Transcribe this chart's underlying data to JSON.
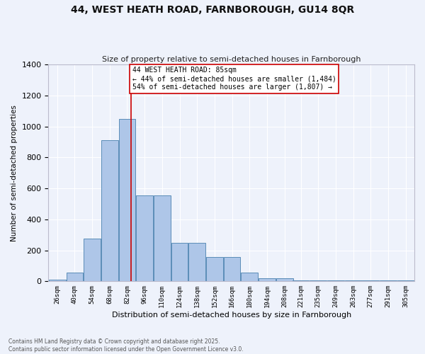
{
  "title_line1": "44, WEST HEATH ROAD, FARNBOROUGH, GU14 8QR",
  "title_line2": "Size of property relative to semi-detached houses in Farnborough",
  "xlabel": "Distribution of semi-detached houses by size in Farnborough",
  "ylabel": "Number of semi-detached properties",
  "bins": [
    26,
    40,
    54,
    68,
    82,
    96,
    110,
    124,
    138,
    152,
    166,
    180,
    194,
    208,
    221,
    235,
    249,
    263,
    277,
    291,
    305
  ],
  "values": [
    10,
    55,
    275,
    910,
    1050,
    555,
    555,
    250,
    250,
    155,
    155,
    55,
    20,
    20,
    5,
    5,
    5,
    5,
    5,
    5,
    5
  ],
  "bar_color": "#aec6e8",
  "bar_edge_color": "#5b8db8",
  "bg_color": "#eef2fb",
  "grid_color": "#ffffff",
  "ref_line_x": 85,
  "ref_line_color": "#cc0000",
  "annotation_title": "44 WEST HEATH ROAD: 85sqm",
  "annotation_line1": "← 44% of semi-detached houses are smaller (1,484)",
  "annotation_line2": "54% of semi-detached houses are larger (1,807) →",
  "annotation_box_color": "#cc0000",
  "footer_line1": "Contains HM Land Registry data © Crown copyright and database right 2025.",
  "footer_line2": "Contains public sector information licensed under the Open Government Licence v3.0.",
  "ylim": [
    0,
    1400
  ],
  "yticks": [
    0,
    200,
    400,
    600,
    800,
    1000,
    1200,
    1400
  ],
  "bin_width": 13.5
}
